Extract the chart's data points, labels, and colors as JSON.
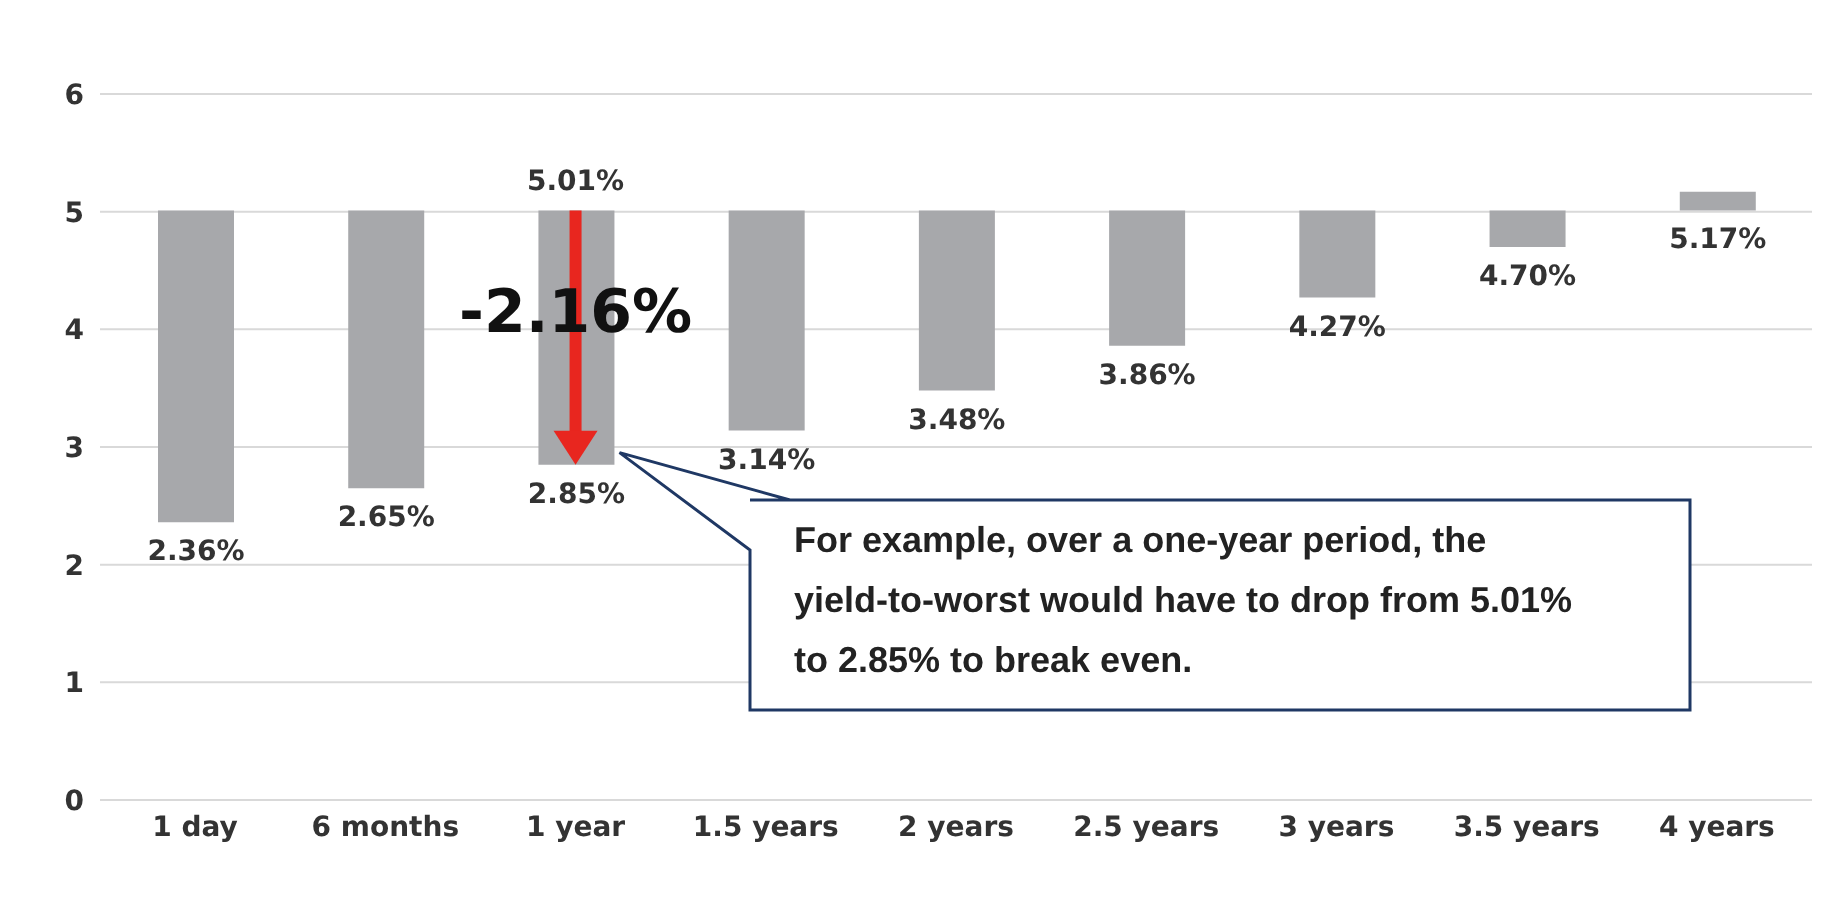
{
  "chart_data": {
    "type": "bar",
    "categories": [
      "1 day",
      "6 months",
      "1 year",
      "1.5 years",
      "2 years",
      "2.5 years",
      "3 years",
      "3.5 years",
      "4 years"
    ],
    "base": [
      5.01,
      5.01,
      5.01,
      5.01,
      5.01,
      5.01,
      5.01,
      5.01,
      5.01
    ],
    "values": [
      -2.65,
      -2.36,
      -2.16,
      -1.87,
      -1.53,
      -1.15,
      -0.74,
      -0.31,
      0.16
    ],
    "value_labels": [
      "2.36%",
      "2.65%",
      "2.85%",
      "3.14%",
      "3.48%",
      "3.86%",
      "4.27%",
      "4.70%",
      "5.17%"
    ],
    "color": "#a7a8ab",
    "ylim": [
      0,
      6
    ],
    "yticks": [
      0,
      1,
      2,
      3,
      4,
      5,
      6
    ],
    "grid": "y",
    "legend": false,
    "annotations": [
      {
        "text": "5.01%",
        "x": "1 year",
        "y": 5.01
      },
      "-2.16%",
      "For example, over a one-year period, the yield-to-worst would have to drop from 5.01% to 2.85% to break even."
    ]
  }
}
